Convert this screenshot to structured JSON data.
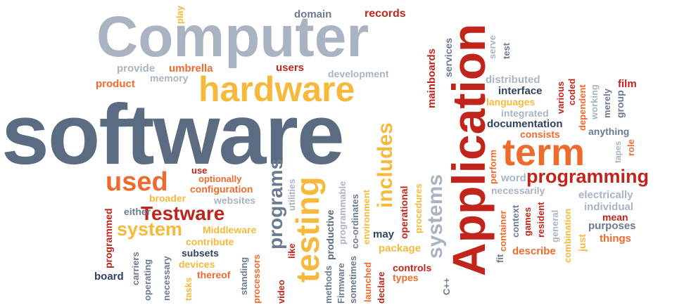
{
  "words": {
    "computer": "Computer",
    "software": "software",
    "hardware": "hardware",
    "application": "Application",
    "term": "term",
    "programming": "programming",
    "used": "used",
    "testing": "testing",
    "testware": "Testware",
    "system": "system",
    "programs": "programs",
    "includes": "includes",
    "systems": "systems",
    "domain": "domain",
    "records": "records",
    "play": "play",
    "provide": "provide",
    "umbrella": "umbrella",
    "users": "users",
    "development": "development",
    "memory": "memory",
    "product": "product",
    "mainboards": "mainboards",
    "services": "services",
    "serve": "serve",
    "test": "test",
    "distributed": "distributed",
    "interface": "interface",
    "languages": "languages",
    "integrated": "integrated",
    "documentation": "documentation",
    "consists": "consists",
    "anything": "anything",
    "various": "various",
    "coded": "coded",
    "dependent": "dependent",
    "merely": "merely",
    "working": "working",
    "film": "film",
    "group": "group",
    "role": "role",
    "tapes": "tapes",
    "perform": "perform",
    "word": "word",
    "necessarily": "necessarily",
    "electrically": "electrically",
    "individual": "individual",
    "mean": "mean",
    "purposes": "purposes",
    "things": "things",
    "just": "just",
    "combination": "combination",
    "general": "general",
    "resident": "resident",
    "games": "games",
    "context": "context",
    "container": "container",
    "fit": "fit",
    "describe": "describe",
    "use": "use",
    "optionally": "optionally",
    "configuration": "configuration",
    "broader": "broader",
    "websites": "websites",
    "either": "either",
    "middleware": "Middleware",
    "contribute": "contribute",
    "subsets": "subsets",
    "devices": "devices",
    "thereof": "thereof",
    "programmed": "programmed",
    "carriers": "carriers",
    "operating": "operating",
    "necessary": "necessary",
    "tasks": "tasks",
    "board": "board",
    "standing": "standing",
    "processors": "processors",
    "video": "video",
    "like": "like",
    "utilities": "utilities",
    "methods": "methods",
    "productive": "productive",
    "firmware": "Firmware",
    "programmable": "programmable",
    "sometimes": "sometimes",
    "co_ordinates": "co-ordinates",
    "environment": "environment",
    "launched": "launched",
    "operational": "operational",
    "declare": "declare",
    "procedures": "procedures",
    "may": "may",
    "package": "package",
    "controls": "controls",
    "types": "types",
    "cpp": "C++"
  }
}
